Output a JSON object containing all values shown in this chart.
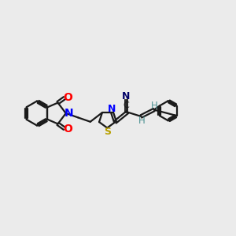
{
  "bg_color": "#ebebeb",
  "bond_color": "#1a1a1a",
  "N_color": "#0000ff",
  "O_color": "#ff0000",
  "S_color": "#b8a000",
  "vinyl_H_color": "#4a9090",
  "cyano_N_color": "#000066",
  "lw": 1.6,
  "xlim": [
    0,
    10
  ],
  "ylim": [
    0,
    10
  ]
}
